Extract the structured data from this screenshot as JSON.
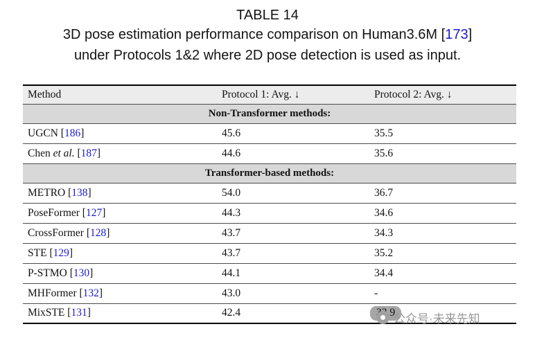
{
  "caption": {
    "label": "TABLE 14",
    "line2_pre": "3D pose estimation performance comparison on Human3.6M [",
    "line2_cite": "173",
    "line2_post": "]",
    "line3": "under Protocols 1&2 where 2D pose detection is used as input."
  },
  "punct": {
    "open": " [",
    "close": "]"
  },
  "table": {
    "headers": {
      "method": "Method",
      "p1": "Protocol 1: Avg. ↓",
      "p2": "Protocol 2: Avg. ↓"
    },
    "sections": [
      {
        "label": "Non-Transformer methods:",
        "rows": [
          {
            "name": "UGCN",
            "name_italic": "",
            "cite": "186",
            "p1": "45.6",
            "p2": "35.5"
          },
          {
            "name": "Chen ",
            "name_italic": "et al.",
            "cite": "187",
            "p1": "44.6",
            "p2": "35.6"
          }
        ]
      },
      {
        "label": "Transformer-based methods:",
        "rows": [
          {
            "name": "METRO",
            "name_italic": "",
            "cite": "138",
            "p1": "54.0",
            "p2": "36.7"
          },
          {
            "name": "PoseFormer",
            "name_italic": "",
            "cite": "127",
            "p1": "44.3",
            "p2": "34.6"
          },
          {
            "name": "CrossFormer",
            "name_italic": "",
            "cite": "128",
            "p1": "43.7",
            "p2": "34.3"
          },
          {
            "name": "STE",
            "name_italic": "",
            "cite": "129",
            "p1": "43.7",
            "p2": "35.2"
          },
          {
            "name": "P-STMO",
            "name_italic": "",
            "cite": "130",
            "p1": "44.1",
            "p2": "34.4"
          },
          {
            "name": "MHFormer",
            "name_italic": "",
            "cite": "132",
            "p1": "43.0",
            "p2": "-"
          },
          {
            "name": "MixSTE",
            "name_italic": "",
            "cite": "131",
            "p1": "42.4",
            "p2": "33.9"
          }
        ]
      }
    ]
  },
  "watermark": {
    "text": "公众号·未来先知"
  },
  "colors": {
    "citation_blue": "#1b1bd0",
    "header_bg": "#ececec",
    "section_bg": "#d8d8d8",
    "watermark_gray": "#989898"
  }
}
